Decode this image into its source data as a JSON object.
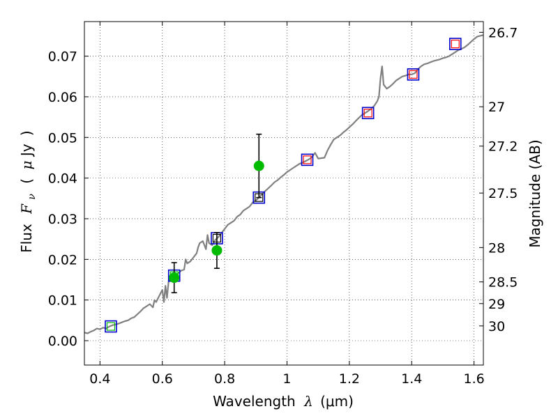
{
  "chart_data": {
    "type": "scatter",
    "xlabel_text": "Wavelength",
    "xlabel_symbol": "λ",
    "xlabel_unit": "(μm)",
    "ylabel_text": "Flux",
    "ylabel_symbol": "F",
    "ylabel_subscript": "ν",
    "ylabel_unit_open": "(",
    "ylabel_unit_mu": "μ",
    "ylabel_unit": "Jy",
    "ylabel_unit_close": ")",
    "y2label": "Magnitude (AB)",
    "xlim": [
      0.35,
      1.63
    ],
    "ylim": [
      -0.006,
      0.0785
    ],
    "grid": true,
    "x_ticks": [
      0.4,
      0.6,
      0.8,
      1.0,
      1.2,
      1.4,
      1.6
    ],
    "x_tick_labels": [
      "0.4",
      "0.6",
      "0.8",
      "1",
      "1.2",
      "1.4",
      "1.6"
    ],
    "y_ticks": [
      0.0,
      0.01,
      0.02,
      0.03,
      0.04,
      0.05,
      0.06,
      0.07
    ],
    "y_tick_labels": [
      "0.00",
      "0.01",
      "0.02",
      "0.03",
      "0.04",
      "0.05",
      "0.06",
      "0.07"
    ],
    "y2_ticks": [
      {
        "mag": 26.7,
        "label": "26.7"
      },
      {
        "mag": 27.0,
        "label": "27"
      },
      {
        "mag": 27.2,
        "label": "27.2"
      },
      {
        "mag": 27.5,
        "label": "27.5"
      },
      {
        "mag": 28.0,
        "label": "28"
      },
      {
        "mag": 28.5,
        "label": "28.5"
      },
      {
        "mag": 29.0,
        "label": "29"
      },
      {
        "mag": 30.0,
        "label": "30"
      }
    ],
    "colors": {
      "spectrum": "#808080",
      "model_box": "#0000cc",
      "observed": "#00bb00",
      "errorbar": "#000000",
      "inner_green": "#00bb00",
      "inner_black": "#000000",
      "inner_red": "#ff0000"
    },
    "spectrum": [
      [
        0.35,
        0.002
      ],
      [
        0.36,
        0.0018
      ],
      [
        0.37,
        0.0022
      ],
      [
        0.38,
        0.0025
      ],
      [
        0.39,
        0.003
      ],
      [
        0.4,
        0.0028
      ],
      [
        0.41,
        0.0032
      ],
      [
        0.42,
        0.003
      ],
      [
        0.43,
        0.0035
      ],
      [
        0.44,
        0.0038
      ],
      [
        0.45,
        0.004
      ],
      [
        0.46,
        0.0042
      ],
      [
        0.47,
        0.0045
      ],
      [
        0.48,
        0.0048
      ],
      [
        0.49,
        0.005
      ],
      [
        0.5,
        0.0055
      ],
      [
        0.51,
        0.0058
      ],
      [
        0.52,
        0.0065
      ],
      [
        0.53,
        0.0072
      ],
      [
        0.54,
        0.008
      ],
      [
        0.55,
        0.0085
      ],
      [
        0.56,
        0.009
      ],
      [
        0.57,
        0.0082
      ],
      [
        0.575,
        0.01
      ],
      [
        0.58,
        0.0095
      ],
      [
        0.59,
        0.011
      ],
      [
        0.6,
        0.0125
      ],
      [
        0.605,
        0.0095
      ],
      [
        0.61,
        0.0135
      ],
      [
        0.615,
        0.0105
      ],
      [
        0.62,
        0.0145
      ],
      [
        0.63,
        0.0155
      ],
      [
        0.64,
        0.016
      ],
      [
        0.65,
        0.0165
      ],
      [
        0.66,
        0.0172
      ],
      [
        0.67,
        0.0175
      ],
      [
        0.675,
        0.02
      ],
      [
        0.68,
        0.019
      ],
      [
        0.69,
        0.0195
      ],
      [
        0.7,
        0.0205
      ],
      [
        0.71,
        0.0215
      ],
      [
        0.715,
        0.023
      ],
      [
        0.72,
        0.024
      ],
      [
        0.73,
        0.0245
      ],
      [
        0.74,
        0.0225
      ],
      [
        0.745,
        0.026
      ],
      [
        0.75,
        0.024
      ],
      [
        0.76,
        0.0235
      ],
      [
        0.77,
        0.0248
      ],
      [
        0.78,
        0.0255
      ],
      [
        0.79,
        0.0265
      ],
      [
        0.8,
        0.0275
      ],
      [
        0.81,
        0.0285
      ],
      [
        0.82,
        0.029
      ],
      [
        0.83,
        0.0295
      ],
      [
        0.84,
        0.0305
      ],
      [
        0.85,
        0.031
      ],
      [
        0.86,
        0.032
      ],
      [
        0.87,
        0.0325
      ],
      [
        0.88,
        0.033
      ],
      [
        0.89,
        0.034
      ],
      [
        0.9,
        0.0345
      ],
      [
        0.91,
        0.0352
      ],
      [
        0.92,
        0.036
      ],
      [
        0.93,
        0.0368
      ],
      [
        0.94,
        0.0375
      ],
      [
        0.95,
        0.0382
      ],
      [
        0.96,
        0.039
      ],
      [
        0.97,
        0.0395
      ],
      [
        0.98,
        0.0402
      ],
      [
        0.99,
        0.0408
      ],
      [
        1.0,
        0.0415
      ],
      [
        1.01,
        0.042
      ],
      [
        1.02,
        0.0425
      ],
      [
        1.03,
        0.043
      ],
      [
        1.04,
        0.0435
      ],
      [
        1.05,
        0.0438
      ],
      [
        1.06,
        0.0442
      ],
      [
        1.07,
        0.0446
      ],
      [
        1.08,
        0.0452
      ],
      [
        1.09,
        0.0462
      ],
      [
        1.095,
        0.0455
      ],
      [
        1.1,
        0.0448
      ],
      [
        1.12,
        0.045
      ],
      [
        1.13,
        0.0468
      ],
      [
        1.14,
        0.0482
      ],
      [
        1.15,
        0.0495
      ],
      [
        1.16,
        0.05
      ],
      [
        1.17,
        0.0505
      ],
      [
        1.18,
        0.0512
      ],
      [
        1.19,
        0.0518
      ],
      [
        1.2,
        0.0525
      ],
      [
        1.21,
        0.0532
      ],
      [
        1.22,
        0.054
      ],
      [
        1.23,
        0.0548
      ],
      [
        1.24,
        0.0555
      ],
      [
        1.25,
        0.056
      ],
      [
        1.26,
        0.0565
      ],
      [
        1.27,
        0.057
      ],
      [
        1.28,
        0.0578
      ],
      [
        1.29,
        0.059
      ],
      [
        1.295,
        0.06
      ],
      [
        1.3,
        0.0645
      ],
      [
        1.305,
        0.0675
      ],
      [
        1.31,
        0.063
      ],
      [
        1.32,
        0.062
      ],
      [
        1.33,
        0.0625
      ],
      [
        1.34,
        0.0632
      ],
      [
        1.35,
        0.064
      ],
      [
        1.36,
        0.0645
      ],
      [
        1.37,
        0.065
      ],
      [
        1.38,
        0.0652
      ],
      [
        1.39,
        0.0655
      ],
      [
        1.4,
        0.0655
      ],
      [
        1.41,
        0.0658
      ],
      [
        1.42,
        0.0668
      ],
      [
        1.43,
        0.0675
      ],
      [
        1.44,
        0.068
      ],
      [
        1.45,
        0.0682
      ],
      [
        1.46,
        0.0685
      ],
      [
        1.47,
        0.0688
      ],
      [
        1.48,
        0.069
      ],
      [
        1.49,
        0.0692
      ],
      [
        1.5,
        0.0695
      ],
      [
        1.51,
        0.0697
      ],
      [
        1.52,
        0.07
      ],
      [
        1.53,
        0.0705
      ],
      [
        1.54,
        0.071
      ],
      [
        1.55,
        0.0715
      ],
      [
        1.56,
        0.0718
      ],
      [
        1.57,
        0.0722
      ],
      [
        1.58,
        0.0728
      ],
      [
        1.59,
        0.0735
      ],
      [
        1.6,
        0.0742
      ],
      [
        1.61,
        0.0748
      ],
      [
        1.62,
        0.075
      ],
      [
        1.63,
        0.0752
      ]
    ],
    "model_points": [
      {
        "x": 0.435,
        "y": 0.0035,
        "inner": "green"
      },
      {
        "x": 0.638,
        "y": 0.016,
        "inner": "green"
      },
      {
        "x": 0.775,
        "y": 0.0252,
        "inner": "black"
      },
      {
        "x": 0.91,
        "y": 0.0352,
        "inner": "black"
      },
      {
        "x": 1.065,
        "y": 0.0445,
        "inner": "red"
      },
      {
        "x": 1.26,
        "y": 0.056,
        "inner": "red"
      },
      {
        "x": 1.405,
        "y": 0.0655,
        "inner": "red"
      },
      {
        "x": 1.54,
        "y": 0.073,
        "inner": "red"
      }
    ],
    "observed_points": [
      {
        "x": 0.638,
        "y": 0.0155,
        "err": 0.0037
      },
      {
        "x": 0.775,
        "y": 0.0222,
        "err": 0.0044
      },
      {
        "x": 0.91,
        "y": 0.043,
        "err": 0.0078
      }
    ]
  }
}
